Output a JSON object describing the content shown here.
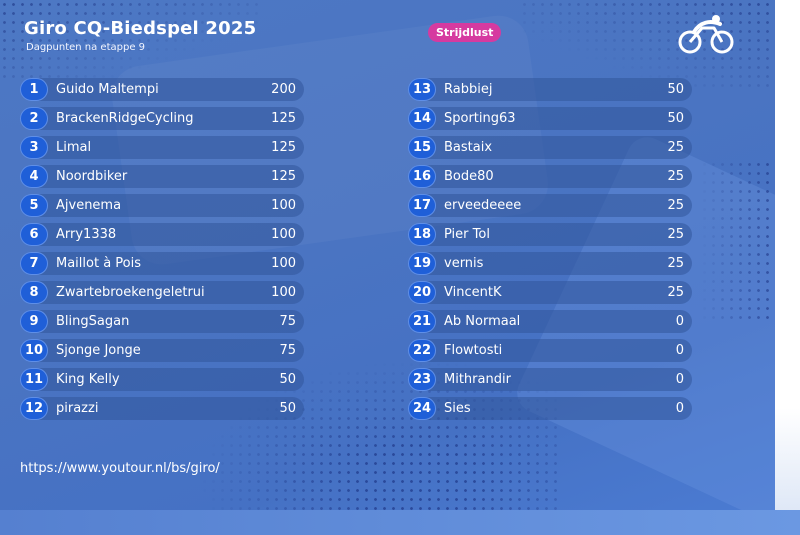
{
  "header": {
    "title": "Giro CQ-Biedspel 2025",
    "subtitle": "Dagpunten na etappe 9",
    "badge": "Strijdlust"
  },
  "logo": {
    "icon": "cyclist-icon",
    "color": "#ffffff"
  },
  "colors": {
    "accent": "#d63aa0",
    "rank_circle": "#1f5fd8",
    "background": "#4a74c2"
  },
  "standings_left": [
    {
      "rank": "1",
      "name": "Guido Maltempi",
      "points": "200"
    },
    {
      "rank": "2",
      "name": "BrackenRidgeCycling",
      "points": "125"
    },
    {
      "rank": "3",
      "name": "Limal",
      "points": "125"
    },
    {
      "rank": "4",
      "name": "Noordbiker",
      "points": "125"
    },
    {
      "rank": "5",
      "name": "Ajvenema",
      "points": "100"
    },
    {
      "rank": "6",
      "name": "Arry1338",
      "points": "100"
    },
    {
      "rank": "7",
      "name": "Maillot à Pois",
      "points": "100"
    },
    {
      "rank": "8",
      "name": "Zwartebroekengeletrui",
      "points": "100"
    },
    {
      "rank": "9",
      "name": "BlingSagan",
      "points": "75"
    },
    {
      "rank": "10",
      "name": "Sjonge Jonge",
      "points": "75"
    },
    {
      "rank": "11",
      "name": "King Kelly",
      "points": "50"
    },
    {
      "rank": "12",
      "name": "pirazzi",
      "points": "50"
    }
  ],
  "standings_right": [
    {
      "rank": "13",
      "name": "Rabbiej",
      "points": "50"
    },
    {
      "rank": "14",
      "name": "Sporting63",
      "points": "50"
    },
    {
      "rank": "15",
      "name": "Bastaix",
      "points": "25"
    },
    {
      "rank": "16",
      "name": "Bode80",
      "points": "25"
    },
    {
      "rank": "17",
      "name": "erveedeeee",
      "points": "25"
    },
    {
      "rank": "18",
      "name": "Pier Tol",
      "points": "25"
    },
    {
      "rank": "19",
      "name": "vernis",
      "points": "25"
    },
    {
      "rank": "20",
      "name": "VincentK",
      "points": "25"
    },
    {
      "rank": "21",
      "name": "Ab Normaal",
      "points": "0"
    },
    {
      "rank": "22",
      "name": "Flowtosti",
      "points": "0"
    },
    {
      "rank": "23",
      "name": "Mithrandir",
      "points": "0"
    },
    {
      "rank": "24",
      "name": "Sies",
      "points": "0"
    }
  ],
  "footer": {
    "url": "https://www.youtour.nl/bs/giro/"
  }
}
